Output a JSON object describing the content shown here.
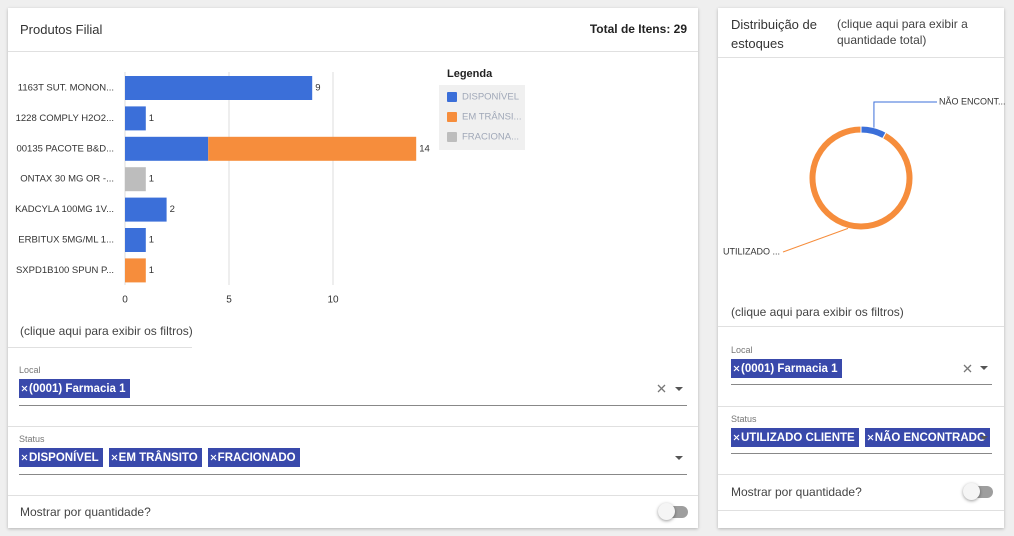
{
  "produtos": {
    "title": "Produtos Filial",
    "total": "Total de Itens: 29",
    "chart_data": {
      "type": "bar",
      "orientation": "horizontal",
      "stacked": true,
      "legend_title": "Legenda",
      "categories": [
        "1163T SUT. MONON...",
        "1228 COMPLY H2O2...",
        "00135 PACOTE B&D...",
        "ONTAX 30 MG OR -...",
        "KADCYLA 100MG 1V...",
        "ERBITUX 5MG/ML 1...",
        "SXPD1B100 SPUN P..."
      ],
      "series": [
        {
          "name": "DISPONÍVEL",
          "color": "#3b6fd9",
          "values": [
            9,
            1,
            4,
            null,
            2,
            1,
            null
          ]
        },
        {
          "name": "EM TRÂNSI...",
          "color": "#f68d3c",
          "values": [
            null,
            null,
            10,
            null,
            null,
            null,
            1
          ]
        },
        {
          "name": "FRACIONA...",
          "color": "#bdbdbd",
          "values": [
            null,
            null,
            null,
            1,
            null,
            null,
            null
          ]
        }
      ],
      "total_labels": [
        9,
        1,
        14,
        1,
        2,
        1,
        1
      ],
      "xlim": [
        0,
        14
      ],
      "xticks": [
        0,
        5,
        10
      ],
      "grid": true
    },
    "filters_hint": "(clique aqui para exibir os filtros)",
    "local": {
      "label": "Local",
      "chips": [
        "(0001) Farmacia 1"
      ]
    },
    "status": {
      "label": "Status",
      "chips": [
        "DISPONÍVEL",
        "EM TRÂNSITO",
        "FRACIONADO"
      ]
    },
    "toggle_label": "Mostrar por quantidade?"
  },
  "distribuicao": {
    "title": "Distribuição de estoques",
    "subtitle": "(clique aqui para exibir a quantidade total)",
    "chart_data": {
      "type": "pie",
      "donut": true,
      "categories": [
        "NÃO ENCONT...",
        "UTILIZADO ..."
      ],
      "values": [
        8,
        92
      ],
      "colors": [
        "#3b6fd9",
        "#f68d3c"
      ]
    },
    "filters_hint": "(clique aqui para exibir os filtros)",
    "local": {
      "label": "Local",
      "chips": [
        "(0001) Farmacia 1"
      ]
    },
    "status": {
      "label": "Status",
      "chips": [
        "UTILIZADO CLIENTE",
        "NÃO ENCONTRADO"
      ]
    },
    "toggle_label": "Mostrar por quantidade?"
  }
}
